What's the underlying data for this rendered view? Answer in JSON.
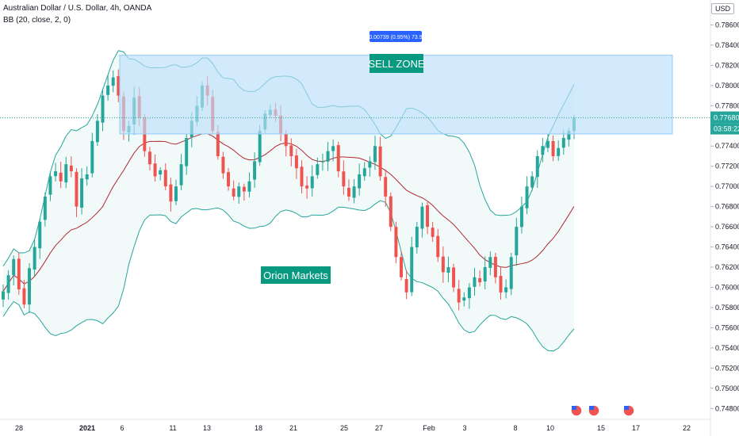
{
  "header": {
    "symbol_line": "Australian Dollar / U.S. Dollar, 4h, OANDA",
    "indicator_line": "BB (20, close, 2, 0)"
  },
  "price_axis": {
    "currency": "USD",
    "current_price": "0.77680",
    "countdown": "03:58:22",
    "current_price_color": "#26a69a"
  },
  "annotations": {
    "sell_zone": "SELL ZONE",
    "brand": "Orion Markets",
    "measure": "0.00739 (0.95%) 73.9"
  },
  "colors": {
    "up": "#26a69a",
    "down": "#ef5350",
    "band": "#26a69a",
    "basis": "#b22833",
    "zone_fill": "#bbdefb",
    "zone_stroke": "#90caf9",
    "label_bg": "#089981",
    "measure_bg": "#2962ff"
  },
  "chart_data": {
    "type": "candlestick",
    "title": "Australian Dollar / U.S. Dollar, 4h, OANDA",
    "indicator": "BB (20, close, 2, 0)",
    "ylim": [
      0.747,
      0.788
    ],
    "y_ticks": [
      "0.78600",
      "0.78400",
      "0.78200",
      "0.78000",
      "0.77800",
      "0.77400",
      "0.77200",
      "0.77000",
      "0.76800",
      "0.76600",
      "0.76400",
      "0.76200",
      "0.76000",
      "0.75800",
      "0.75600",
      "0.75400",
      "0.75200",
      "0.75000",
      "0.74800"
    ],
    "x_ticks": [
      "28",
      "2021",
      "6",
      "11",
      "13",
      "18",
      "21",
      "25",
      "27",
      "Feb",
      "3",
      "8",
      "10",
      "15",
      "17",
      "22"
    ],
    "sell_zone": {
      "low": 0.7752,
      "high": 0.783
    },
    "last_close": 0.7768,
    "ohlc_path": [
      0.7596,
      0.7612,
      0.7628,
      0.7598,
      0.7583,
      0.7619,
      0.764,
      0.7665,
      0.769,
      0.771,
      0.7715,
      0.7705,
      0.7722,
      0.7715,
      0.768,
      0.7708,
      0.7712,
      0.7745,
      0.7765,
      0.779,
      0.78,
      0.7808,
      0.779,
      0.7755,
      0.776,
      0.7788,
      0.7768,
      0.7735,
      0.7722,
      0.771,
      0.7716,
      0.77,
      0.7685,
      0.77,
      0.7722,
      0.7748,
      0.7765,
      0.778,
      0.78,
      0.779,
      0.7755,
      0.773,
      0.7713,
      0.77,
      0.769,
      0.77,
      0.7695,
      0.7705,
      0.7725,
      0.7755,
      0.7772,
      0.7776,
      0.777,
      0.7752,
      0.774,
      0.773,
      0.7718,
      0.77,
      0.7698,
      0.771,
      0.7722,
      0.7725,
      0.7735,
      0.774,
      0.7715,
      0.77,
      0.769,
      0.77,
      0.7712,
      0.7718,
      0.7725,
      0.774,
      0.771,
      0.769,
      0.766,
      0.763,
      0.761,
      0.7595,
      0.764,
      0.766,
      0.768,
      0.766,
      0.765,
      0.763,
      0.7615,
      0.762,
      0.76,
      0.7585,
      0.759,
      0.76,
      0.761,
      0.7605,
      0.762,
      0.763,
      0.761,
      0.7595,
      0.76,
      0.763,
      0.766,
      0.768,
      0.77,
      0.771,
      0.773,
      0.774,
      0.7745,
      0.773,
      0.7738,
      0.7748,
      0.7755,
      0.7768
    ]
  }
}
